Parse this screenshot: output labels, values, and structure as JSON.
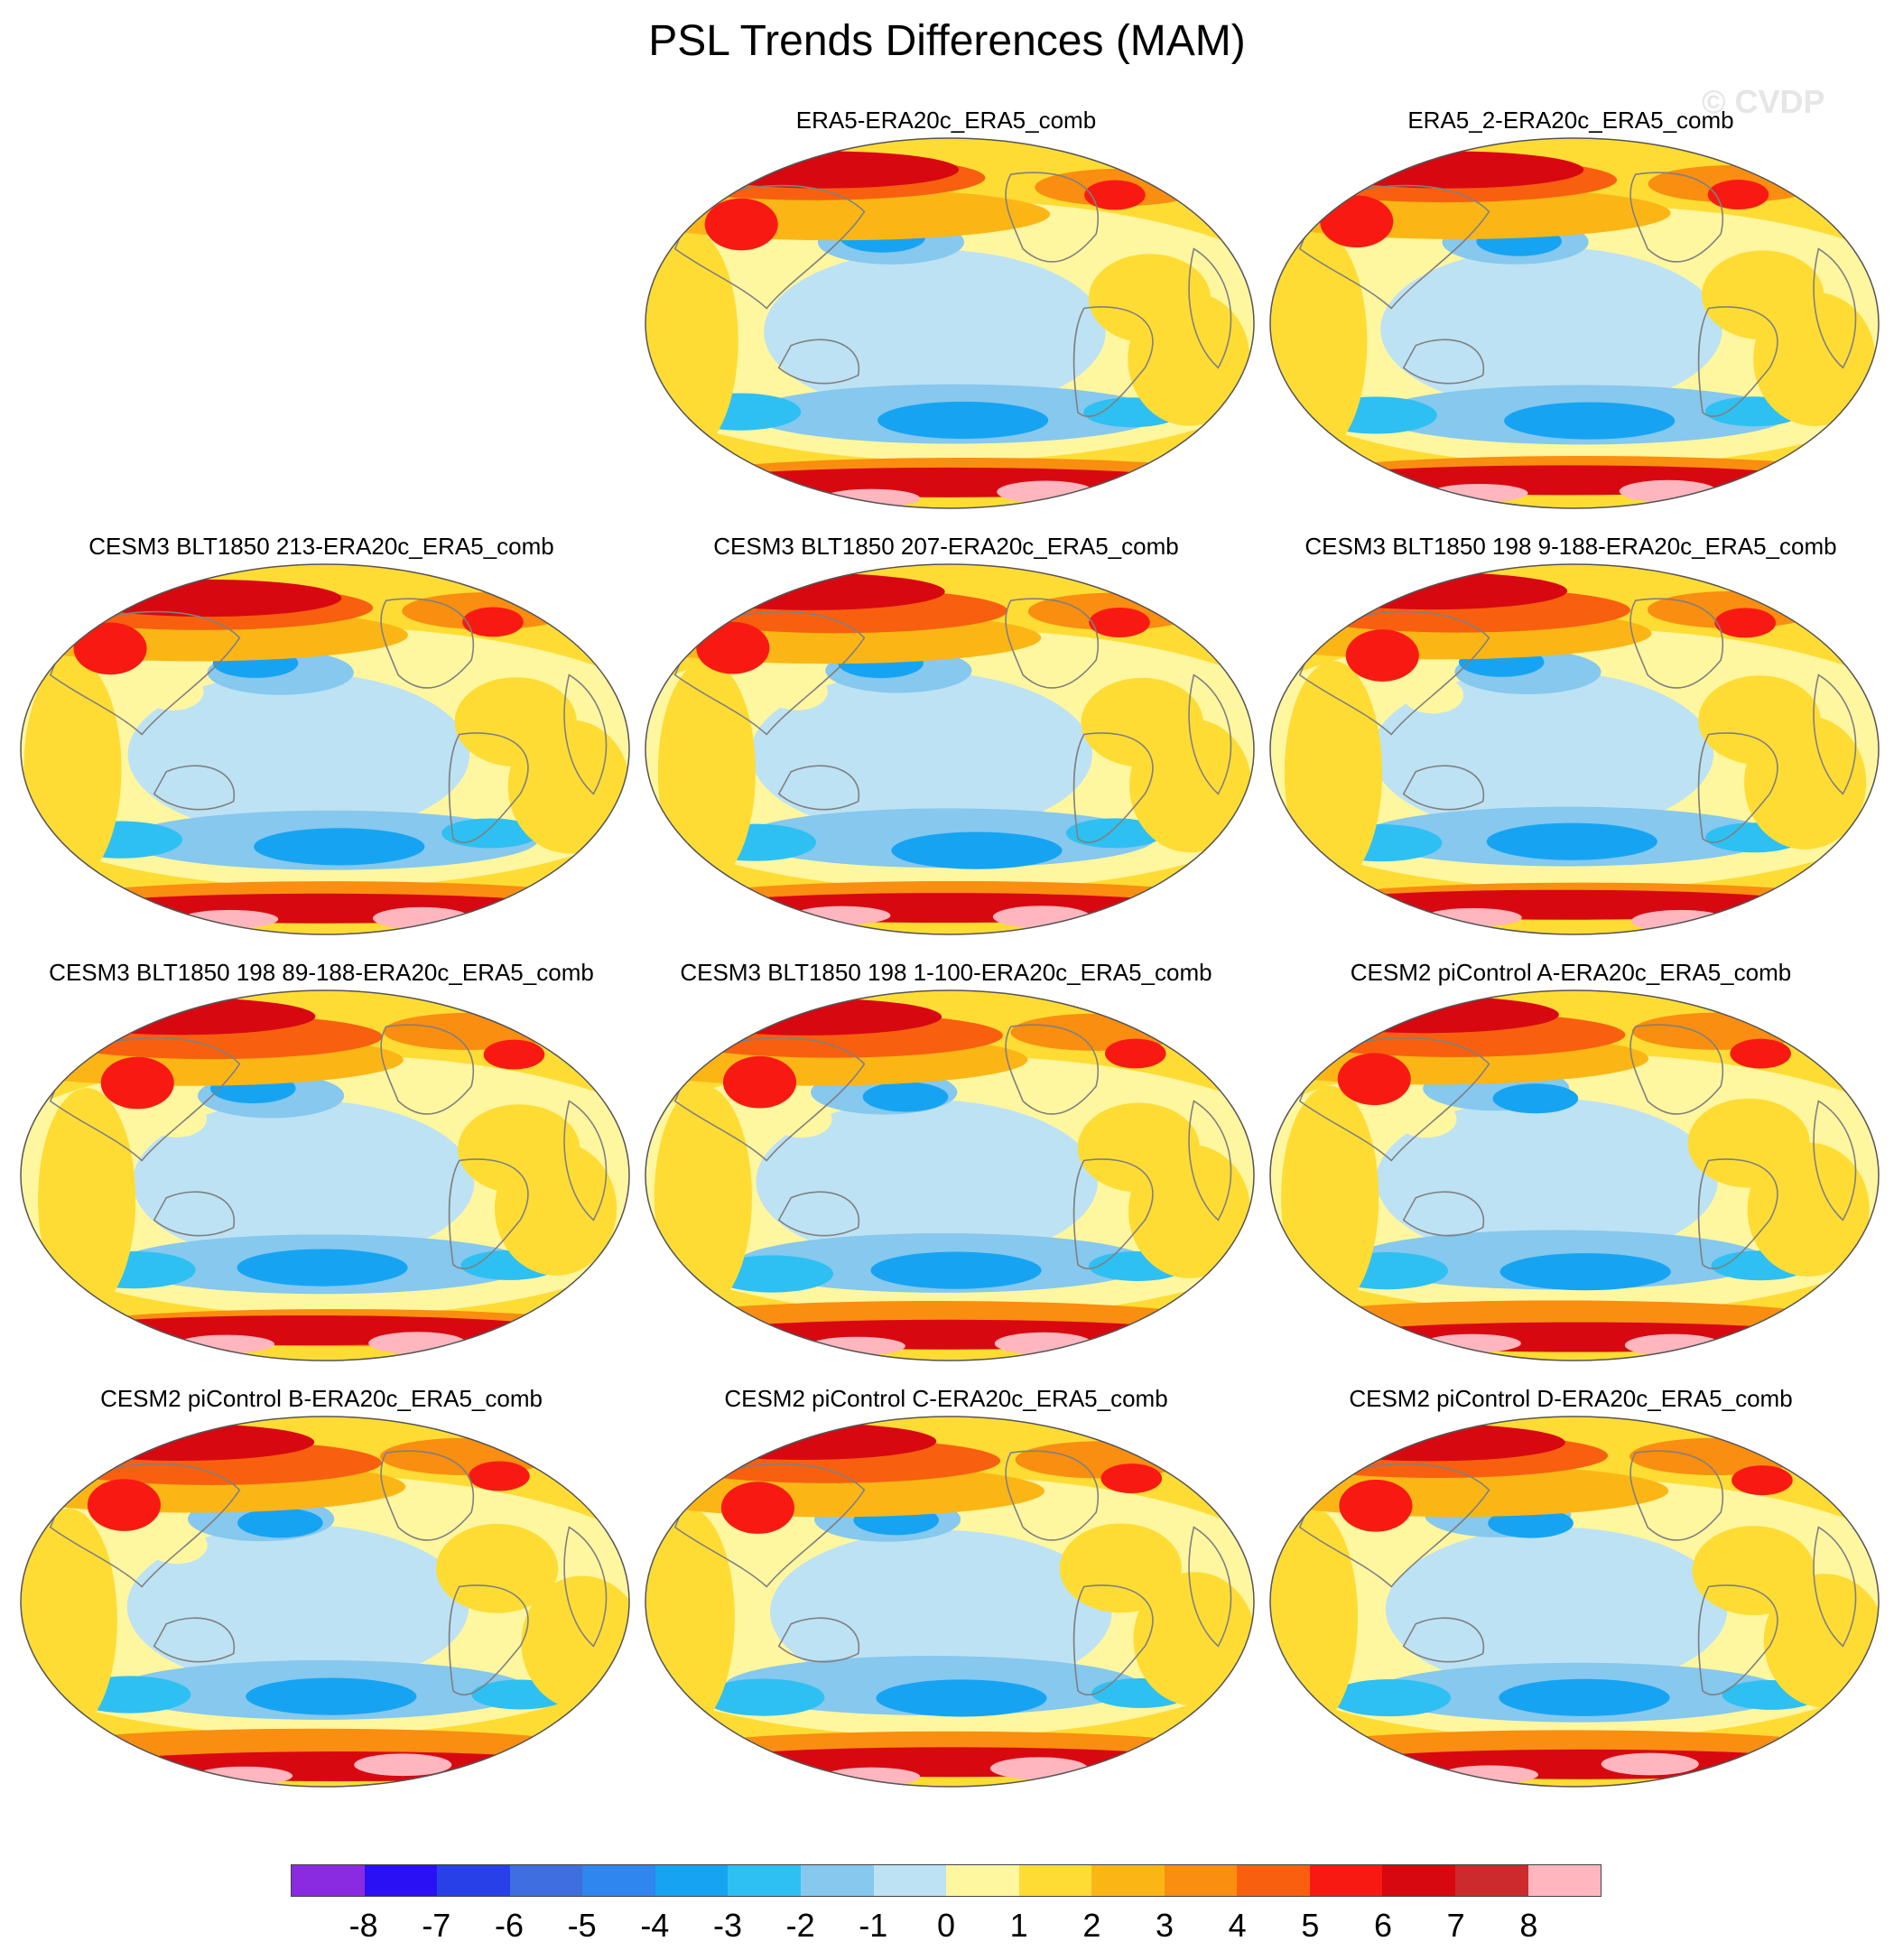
{
  "title": "PSL Trends Differences (MAM)",
  "watermark": "© CVDP",
  "panels": [
    {
      "title": "ERA5-ERA20c_ERA5_comb"
    },
    {
      "title": "ERA5_2-ERA20c_ERA5_comb"
    },
    {
      "title": "CESM3 BLT1850 213-ERA20c_ERA5_comb"
    },
    {
      "title": "CESM3 BLT1850 207-ERA20c_ERA5_comb"
    },
    {
      "title": "CESM3 BLT1850 198 9-188-ERA20c_ERA5_comb"
    },
    {
      "title": "CESM3 BLT1850 198 89-188-ERA20c_ERA5_comb"
    },
    {
      "title": "CESM3 BLT1850 198 1-100-ERA20c_ERA5_comb"
    },
    {
      "title": "CESM2 piControl A-ERA20c_ERA5_comb"
    },
    {
      "title": "CESM2 piControl B-ERA20c_ERA5_comb"
    },
    {
      "title": "CESM2 piControl C-ERA20c_ERA5_comb"
    },
    {
      "title": "CESM2 piControl D-ERA20c_ERA5_comb"
    }
  ],
  "colorbar": {
    "labels": [
      "-8",
      "-7",
      "-6",
      "-5",
      "-4",
      "-3",
      "-2",
      "-1",
      "0",
      "1",
      "2",
      "3",
      "4",
      "5",
      "6",
      "7",
      "8"
    ],
    "colors": [
      "#8a2be2",
      "#2a10f5",
      "#2840e8",
      "#3e6ee0",
      "#2f86ee",
      "#16a4f2",
      "#2ec0f2",
      "#86c8ee",
      "#bde2f4",
      "#fff6a0",
      "#fedc34",
      "#fbb616",
      "#f98e10",
      "#f86010",
      "#f81a12",
      "#d80810",
      "#cc2a2c",
      "#ffb6be"
    ]
  },
  "palette": {
    "land_outline": "#808080",
    "frame": "#555555",
    "background": "#ffffff"
  }
}
